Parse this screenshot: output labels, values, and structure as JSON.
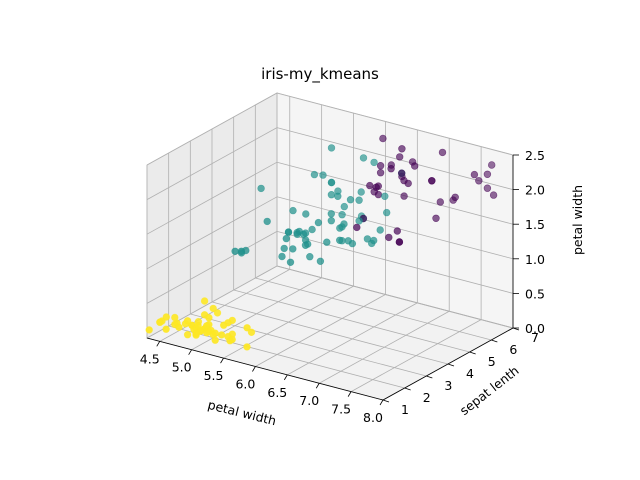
{
  "chart_data": {
    "type": "scatter3d",
    "title": "iris-my_kmeans",
    "xlabel": "petal width",
    "ylabel": "sepat lenth",
    "zlabel": "petal width",
    "xlim": [
      4.3,
      8.0
    ],
    "ylim": [
      1,
      7
    ],
    "zlim": [
      0,
      2.5
    ],
    "xticks": [
      "4.5",
      "5.0",
      "5.5",
      "6.0",
      "6.5",
      "7.0",
      "7.5",
      "8.0"
    ],
    "yticks": [
      "1",
      "2",
      "3",
      "4",
      "5",
      "6",
      "7"
    ],
    "zticks": [
      "0.0",
      "0.5",
      "1.0",
      "1.5",
      "2.0",
      "2.5"
    ],
    "grid": true,
    "colors": {
      "cluster_0": "#440154",
      "cluster_1": "#21918c",
      "cluster_2": "#fde725"
    },
    "clusters": [
      {
        "color": "#fde725",
        "points": [
          [
            5.1,
            1.4,
            0.2
          ],
          [
            4.9,
            1.4,
            0.2
          ],
          [
            4.7,
            1.3,
            0.2
          ],
          [
            4.6,
            1.5,
            0.2
          ],
          [
            5.0,
            1.4,
            0.2
          ],
          [
            5.4,
            1.7,
            0.4
          ],
          [
            4.6,
            1.4,
            0.3
          ],
          [
            5.0,
            1.5,
            0.2
          ],
          [
            4.4,
            1.4,
            0.2
          ],
          [
            4.9,
            1.5,
            0.1
          ],
          [
            5.4,
            1.5,
            0.2
          ],
          [
            4.8,
            1.6,
            0.2
          ],
          [
            4.8,
            1.4,
            0.1
          ],
          [
            4.3,
            1.1,
            0.1
          ],
          [
            5.8,
            1.2,
            0.2
          ],
          [
            5.7,
            1.5,
            0.4
          ],
          [
            5.4,
            1.3,
            0.4
          ],
          [
            5.1,
            1.4,
            0.3
          ],
          [
            5.7,
            1.7,
            0.3
          ],
          [
            5.1,
            1.5,
            0.3
          ],
          [
            5.4,
            1.7,
            0.2
          ],
          [
            5.1,
            1.5,
            0.4
          ],
          [
            4.6,
            1.0,
            0.2
          ],
          [
            5.1,
            1.7,
            0.5
          ],
          [
            4.8,
            1.9,
            0.2
          ],
          [
            5.0,
            1.6,
            0.2
          ],
          [
            5.0,
            1.6,
            0.4
          ],
          [
            5.2,
            1.5,
            0.2
          ],
          [
            5.2,
            1.4,
            0.2
          ],
          [
            4.7,
            1.6,
            0.2
          ],
          [
            4.8,
            1.6,
            0.2
          ],
          [
            5.4,
            1.5,
            0.4
          ],
          [
            5.2,
            1.5,
            0.1
          ],
          [
            5.5,
            1.4,
            0.2
          ],
          [
            4.9,
            1.5,
            0.2
          ],
          [
            5.0,
            1.2,
            0.2
          ],
          [
            5.5,
            1.3,
            0.2
          ],
          [
            4.4,
            1.3,
            0.2
          ],
          [
            5.1,
            1.5,
            0.2
          ],
          [
            5.0,
            1.3,
            0.3
          ],
          [
            4.5,
            1.3,
            0.3
          ],
          [
            4.4,
            1.3,
            0.2
          ],
          [
            5.0,
            1.6,
            0.6
          ],
          [
            5.1,
            1.9,
            0.4
          ],
          [
            4.8,
            1.4,
            0.3
          ],
          [
            5.1,
            1.6,
            0.2
          ],
          [
            4.6,
            1.4,
            0.2
          ],
          [
            5.3,
            1.5,
            0.2
          ],
          [
            5.0,
            1.4,
            0.2
          ]
        ]
      },
      {
        "color": "#21918c",
        "points": [
          [
            5.5,
            4.0,
            1.3
          ],
          [
            5.7,
            4.5,
            1.3
          ],
          [
            4.9,
            3.3,
            1.0
          ],
          [
            6.6,
            4.6,
            1.3
          ],
          [
            5.2,
            3.9,
            1.4
          ],
          [
            5.0,
            3.5,
            1.0
          ],
          [
            5.9,
            4.2,
            1.5
          ],
          [
            6.0,
            4.0,
            1.0
          ],
          [
            6.1,
            4.7,
            1.4
          ],
          [
            5.6,
            3.6,
            1.3
          ],
          [
            6.7,
            4.4,
            1.4
          ],
          [
            5.6,
            4.5,
            1.5
          ],
          [
            5.8,
            4.1,
            1.0
          ],
          [
            6.2,
            4.5,
            1.5
          ],
          [
            5.6,
            3.9,
            1.1
          ],
          [
            5.9,
            4.8,
            1.8
          ],
          [
            6.1,
            4.0,
            1.3
          ],
          [
            6.3,
            4.9,
            1.5
          ],
          [
            6.1,
            4.7,
            1.2
          ],
          [
            6.4,
            4.3,
            1.3
          ],
          [
            6.6,
            4.4,
            1.4
          ],
          [
            6.0,
            4.5,
            1.5
          ],
          [
            5.7,
            3.5,
            1.0
          ],
          [
            5.5,
            3.8,
            1.1
          ],
          [
            5.5,
            3.7,
            1.0
          ],
          [
            5.8,
            3.9,
            1.2
          ],
          [
            6.0,
            5.1,
            1.6
          ],
          [
            5.4,
            4.5,
            1.5
          ],
          [
            6.0,
            4.5,
            1.6
          ],
          [
            6.7,
            4.7,
            1.5
          ],
          [
            6.3,
            4.4,
            1.3
          ],
          [
            5.6,
            4.1,
            1.3
          ],
          [
            5.5,
            4.0,
            1.3
          ],
          [
            5.5,
            4.4,
            1.2
          ],
          [
            6.1,
            4.6,
            1.4
          ],
          [
            5.8,
            4.0,
            1.2
          ],
          [
            5.0,
            3.3,
            1.0
          ],
          [
            5.6,
            4.2,
            1.3
          ],
          [
            5.7,
            4.2,
            1.2
          ],
          [
            5.7,
            4.2,
            1.3
          ],
          [
            6.2,
            4.3,
            1.3
          ],
          [
            5.1,
            3.0,
            1.1
          ],
          [
            5.7,
            4.1,
            1.3
          ],
          [
            5.8,
            5.1,
            1.9
          ],
          [
            4.9,
            4.5,
            1.7
          ],
          [
            5.7,
            5.0,
            2.0
          ],
          [
            5.8,
            5.1,
            2.4
          ],
          [
            6.4,
            5.3,
            2.3
          ],
          [
            6.5,
            5.5,
            1.8
          ],
          [
            6.0,
            5.0,
            1.5
          ],
          [
            5.6,
            4.9,
            2.0
          ],
          [
            6.3,
            5.1,
            1.5
          ],
          [
            6.1,
            5.6,
            1.4
          ],
          [
            6.0,
            4.8,
            1.8
          ],
          [
            6.9,
            5.1,
            2.3
          ],
          [
            5.8,
            5.1,
            1.9
          ],
          [
            6.7,
            5.0,
            1.7
          ],
          [
            6.3,
            5.0,
            1.9
          ],
          [
            6.2,
            5.4,
            2.3
          ],
          [
            5.9,
            5.1,
            1.8
          ],
          [
            6.3,
            4.9,
            1.8
          ],
          [
            6.2,
            4.8,
            1.8
          ]
        ]
      },
      {
        "color": "#440154",
        "points": [
          [
            7.0,
            4.7,
            1.4
          ],
          [
            6.4,
            4.5,
            1.5
          ],
          [
            6.9,
            4.9,
            1.5
          ],
          [
            6.3,
            6.0,
            2.5
          ],
          [
            7.1,
            5.9,
            2.1
          ],
          [
            6.3,
            5.6,
            1.8
          ],
          [
            6.5,
            5.8,
            2.2
          ],
          [
            7.6,
            6.6,
            2.1
          ],
          [
            7.3,
            6.3,
            1.8
          ],
          [
            6.7,
            5.8,
            1.8
          ],
          [
            7.2,
            6.1,
            2.5
          ],
          [
            6.4,
            5.1,
            2.0
          ],
          [
            6.8,
            5.5,
            2.1
          ],
          [
            6.5,
            5.1,
            2.0
          ],
          [
            7.7,
            6.7,
            2.2
          ],
          [
            7.7,
            6.9,
            2.3
          ],
          [
            6.9,
            5.7,
            2.3
          ],
          [
            7.7,
            6.7,
            2.0
          ],
          [
            6.7,
            5.7,
            2.1
          ],
          [
            7.2,
            6.0,
            1.8
          ],
          [
            6.4,
            5.6,
            2.1
          ],
          [
            7.2,
            5.8,
            1.6
          ],
          [
            7.4,
            6.1,
            1.9
          ],
          [
            7.9,
            6.4,
            2.0
          ],
          [
            6.4,
            5.6,
            2.2
          ],
          [
            6.3,
            5.1,
            1.5
          ],
          [
            7.7,
            6.1,
            2.3
          ],
          [
            6.4,
            5.5,
            1.8
          ],
          [
            6.9,
            5.4,
            2.1
          ],
          [
            6.7,
            5.6,
            2.4
          ],
          [
            6.8,
            5.9,
            2.3
          ],
          [
            6.7,
            5.7,
            2.5
          ],
          [
            6.5,
            5.2,
            2.0
          ],
          [
            7.1,
            5.9,
            2.1
          ],
          [
            6.8,
            4.8,
            1.4
          ],
          [
            6.7,
            5.2,
            2.3
          ],
          [
            6.9,
            5.1,
            2.3
          ],
          [
            7.0,
            4.7,
            1.4
          ]
        ]
      }
    ]
  }
}
